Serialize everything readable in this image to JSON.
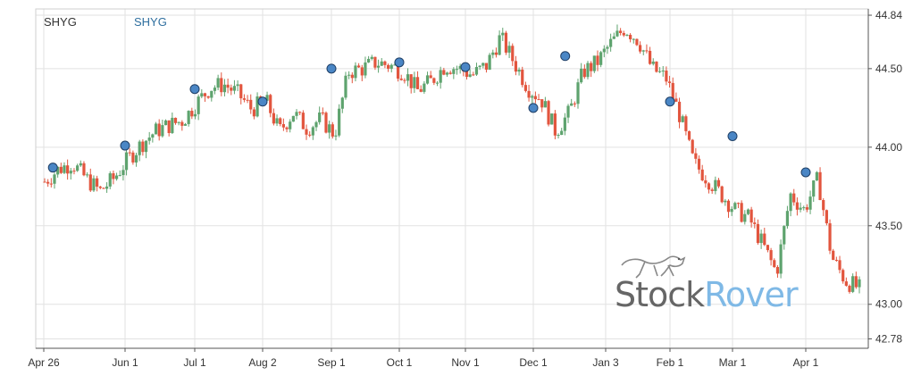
{
  "colors": {
    "up": "#5ea36e",
    "down": "#e2553e",
    "marker": "#4a86c5",
    "grid": "#e2e2e2",
    "axis": "#555555"
  },
  "legend": {
    "symbol": "SHYG",
    "overlay": "SHYG"
  },
  "watermark": {
    "part1": "Stock",
    "part2": "Rover",
    "icon": "greyhound-icon"
  },
  "chart_data": {
    "type": "candlestick",
    "title": "",
    "symbol": "SHYG",
    "x_ticks": [
      "Apr 26",
      "Jun 1",
      "Jul 1",
      "Aug 2",
      "Sep 1",
      "Oct 1",
      "Nov 1",
      "Dec 1",
      "Jan 3",
      "Feb 1",
      "Mar 1",
      "Apr 1"
    ],
    "y_ticks": [
      44.84,
      44.5,
      44.0,
      43.5,
      43.0,
      42.78
    ],
    "ylim": [
      42.72,
      44.88
    ],
    "grid": true,
    "y_axis_position": "right",
    "close_series": [
      43.78,
      43.86,
      43.9,
      43.8,
      43.72,
      43.8,
      43.92,
      44.02,
      44.1,
      44.14,
      44.17,
      44.28,
      44.38,
      44.4,
      44.34,
      44.24,
      44.3,
      44.1,
      44.22,
      44.12,
      44.18,
      44.08,
      44.48,
      44.5,
      44.54,
      44.52,
      44.48,
      44.36,
      44.42,
      44.52,
      44.5,
      44.46,
      44.52,
      44.7,
      44.54,
      44.38,
      44.3,
      44.1,
      44.22,
      44.48,
      44.54,
      44.66,
      44.76,
      44.68,
      44.5,
      44.44,
      44.2,
      43.9,
      43.8,
      43.7,
      43.6,
      43.55,
      43.38,
      43.2,
      43.7,
      43.6,
      43.8,
      43.3,
      43.15,
      43.1
    ],
    "markers": [
      {
        "date": "Apr 30",
        "value": 43.87
      },
      {
        "date": "Jun 1",
        "value": 44.01
      },
      {
        "date": "Jul 1",
        "value": 44.37
      },
      {
        "date": "Aug 2",
        "value": 44.29
      },
      {
        "date": "Sep 1",
        "value": 44.5
      },
      {
        "date": "Oct 1",
        "value": 44.54
      },
      {
        "date": "Nov 1",
        "value": 44.51
      },
      {
        "date": "Dec 1",
        "value": 44.25
      },
      {
        "date": "Dec 15",
        "value": 44.58
      },
      {
        "date": "Feb 1",
        "value": 44.29
      },
      {
        "date": "Mar 1",
        "value": 44.07
      },
      {
        "date": "Apr 1",
        "value": 43.84
      }
    ]
  }
}
